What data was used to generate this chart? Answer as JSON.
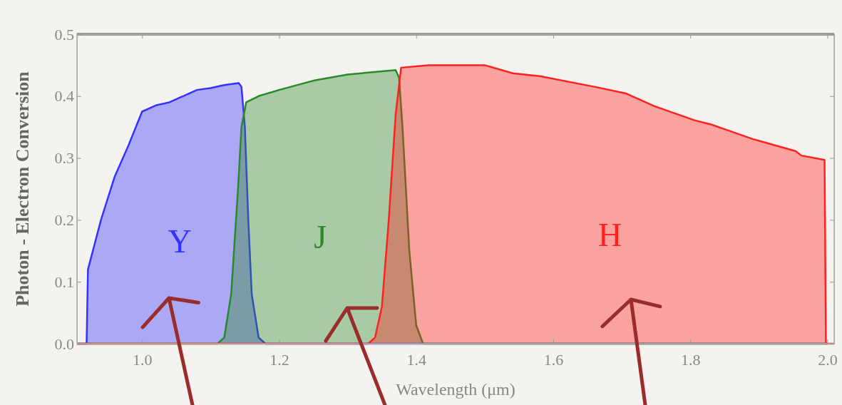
{
  "chart_data": {
    "type": "area",
    "xlabel": "Wavelength (μm)",
    "ylabel": "Photon - Electron Conversion",
    "xlim": [
      0.905,
      2.01
    ],
    "ylim": [
      0,
      0.5
    ],
    "xticks": [
      {
        "value": 1.0,
        "label": "1.0"
      },
      1.2,
      1.4,
      1.6,
      1.8,
      {
        "value": 2.0,
        "label": "2.0"
      }
    ],
    "yticks": [
      {
        "value": 0,
        "label": "0.0"
      },
      0.1,
      0.2,
      0.3,
      0.4,
      0.5
    ],
    "grid": false,
    "series": [
      {
        "name": "Y",
        "color": "#3333ff",
        "x": [
          0.905,
          0.919,
          0.921,
          0.94,
          0.96,
          0.98,
          1.0,
          1.02,
          1.04,
          1.06,
          1.08,
          1.1,
          1.12,
          1.141,
          1.145,
          1.15,
          1.155,
          1.16,
          1.17,
          1.18,
          2.0
        ],
        "values": [
          0,
          0,
          0.12,
          0.2,
          0.27,
          0.32,
          0.375,
          0.385,
          0.39,
          0.4,
          0.41,
          0.413,
          0.418,
          0.421,
          0.415,
          0.35,
          0.2,
          0.08,
          0.01,
          0,
          0
        ]
      },
      {
        "name": "J",
        "color": "#2a8a2a",
        "x": [
          0.905,
          1.11,
          1.12,
          1.13,
          1.14,
          1.145,
          1.152,
          1.17,
          1.2,
          1.25,
          1.3,
          1.35,
          1.37,
          1.375,
          1.38,
          1.39,
          1.4,
          1.41,
          2.0
        ],
        "values": [
          0,
          0,
          0.01,
          0.08,
          0.25,
          0.35,
          0.39,
          0.4,
          0.41,
          0.425,
          0.435,
          0.44,
          0.442,
          0.43,
          0.35,
          0.15,
          0.03,
          0,
          0
        ]
      },
      {
        "name": "H",
        "color": "#ff2020",
        "x": [
          0.905,
          1.33,
          1.34,
          1.35,
          1.36,
          1.37,
          1.378,
          1.418,
          1.5,
          1.541,
          1.582,
          1.665,
          1.707,
          1.747,
          1.806,
          1.831,
          1.893,
          1.954,
          1.962,
          1.996,
          1.998,
          2.01
        ],
        "values": [
          0,
          0,
          0.01,
          0.06,
          0.2,
          0.37,
          0.446,
          0.45,
          0.45,
          0.437,
          0.432,
          0.414,
          0.404,
          0.384,
          0.361,
          0.354,
          0.33,
          0.311,
          0.304,
          0.297,
          0,
          0
        ]
      }
    ]
  }
}
